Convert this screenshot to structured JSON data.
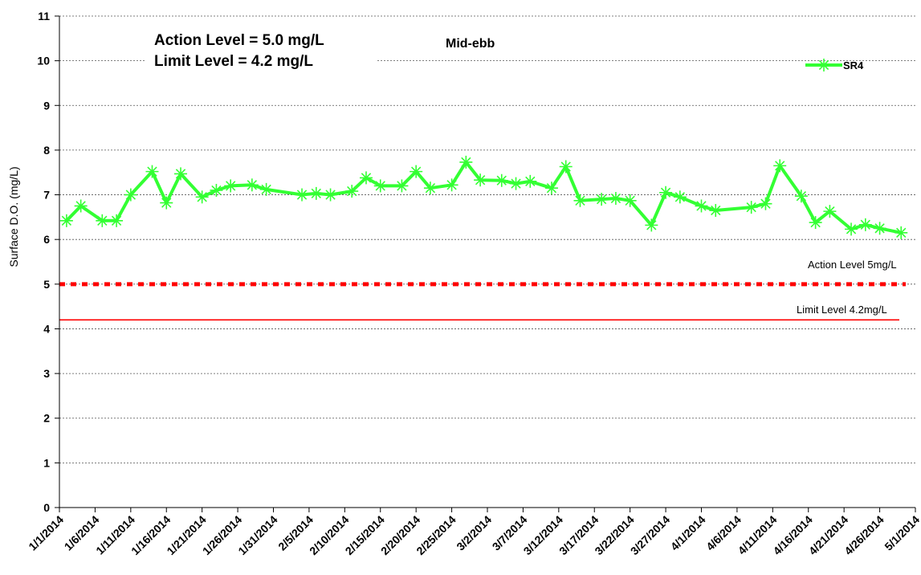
{
  "chart_data": {
    "type": "line",
    "ylabel": "Surface D.O. (mg/L)",
    "ylim": [
      0,
      11
    ],
    "yticks": [
      0,
      1,
      2,
      3,
      4,
      5,
      6,
      7,
      8,
      9,
      10,
      11
    ],
    "xlim": [
      "1/1/2014",
      "5/1/2014"
    ],
    "xticks": [
      "1/1/2014",
      "1/6/2014",
      "1/11/2014",
      "1/16/2014",
      "1/21/2014",
      "1/26/2014",
      "1/31/2014",
      "2/5/2014",
      "2/10/2014",
      "2/15/2014",
      "2/20/2014",
      "2/25/2014",
      "3/2/2014",
      "3/7/2014",
      "3/12/2014",
      "3/17/2014",
      "3/22/2014",
      "3/27/2014",
      "4/1/2014",
      "4/6/2014",
      "4/11/2014",
      "4/16/2014",
      "4/21/2014",
      "4/26/2014",
      "5/1/2014"
    ],
    "grid": true,
    "legend": "top-right",
    "annotations": {
      "action_text": "Action Level = 5.0 mg/L",
      "limit_text": "Limit Level = 4.2 mg/L",
      "tide": "Mid-ebb",
      "action_line_label": "Action Level 5mg/L",
      "limit_line_label": "Limit Level 4.2mg/L"
    },
    "reference_lines": [
      {
        "name": "Action Level",
        "value": 5.0,
        "color": "#ff0000",
        "style": "dashed"
      },
      {
        "name": "Limit Level",
        "value": 4.2,
        "color": "#ff0000",
        "style": "solid"
      }
    ],
    "series": [
      {
        "name": "SR4",
        "color": "#33ff33",
        "points": [
          {
            "x": "1/2/2014",
            "y": 6.42
          },
          {
            "x": "1/4/2014",
            "y": 6.75
          },
          {
            "x": "1/7/2014",
            "y": 6.42
          },
          {
            "x": "1/9/2014",
            "y": 6.42
          },
          {
            "x": "1/11/2014",
            "y": 7.0
          },
          {
            "x": "1/14/2014",
            "y": 7.52
          },
          {
            "x": "1/16/2014",
            "y": 6.82
          },
          {
            "x": "1/18/2014",
            "y": 7.47
          },
          {
            "x": "1/21/2014",
            "y": 6.95
          },
          {
            "x": "1/23/2014",
            "y": 7.1
          },
          {
            "x": "1/25/2014",
            "y": 7.2
          },
          {
            "x": "1/28/2014",
            "y": 7.22
          },
          {
            "x": "1/30/2014",
            "y": 7.12
          },
          {
            "x": "2/4/2014",
            "y": 7.0
          },
          {
            "x": "2/6/2014",
            "y": 7.03
          },
          {
            "x": "2/8/2014",
            "y": 7.0
          },
          {
            "x": "2/11/2014",
            "y": 7.08
          },
          {
            "x": "2/13/2014",
            "y": 7.38
          },
          {
            "x": "2/15/2014",
            "y": 7.2
          },
          {
            "x": "2/18/2014",
            "y": 7.2
          },
          {
            "x": "2/20/2014",
            "y": 7.52
          },
          {
            "x": "2/22/2014",
            "y": 7.15
          },
          {
            "x": "2/25/2014",
            "y": 7.22
          },
          {
            "x": "2/27/2014",
            "y": 7.73
          },
          {
            "x": "3/1/2014",
            "y": 7.33
          },
          {
            "x": "3/4/2014",
            "y": 7.32
          },
          {
            "x": "3/6/2014",
            "y": 7.25
          },
          {
            "x": "3/8/2014",
            "y": 7.3
          },
          {
            "x": "3/11/2014",
            "y": 7.15
          },
          {
            "x": "3/13/2014",
            "y": 7.63
          },
          {
            "x": "3/15/2014",
            "y": 6.87
          },
          {
            "x": "3/18/2014",
            "y": 6.9
          },
          {
            "x": "3/20/2014",
            "y": 6.92
          },
          {
            "x": "3/22/2014",
            "y": 6.87
          },
          {
            "x": "3/25/2014",
            "y": 6.32
          },
          {
            "x": "3/27/2014",
            "y": 7.05
          },
          {
            "x": "3/29/2014",
            "y": 6.95
          },
          {
            "x": "4/1/2014",
            "y": 6.75
          },
          {
            "x": "4/3/2014",
            "y": 6.65
          },
          {
            "x": "4/8/2014",
            "y": 6.72
          },
          {
            "x": "4/10/2014",
            "y": 6.8
          },
          {
            "x": "4/12/2014",
            "y": 7.65
          },
          {
            "x": "4/15/2014",
            "y": 6.97
          },
          {
            "x": "4/17/2014",
            "y": 6.38
          },
          {
            "x": "4/19/2014",
            "y": 6.63
          },
          {
            "x": "4/22/2014",
            "y": 6.23
          },
          {
            "x": "4/24/2014",
            "y": 6.33
          },
          {
            "x": "4/26/2014",
            "y": 6.25
          },
          {
            "x": "4/29/2014",
            "y": 6.15
          }
        ]
      }
    ]
  }
}
